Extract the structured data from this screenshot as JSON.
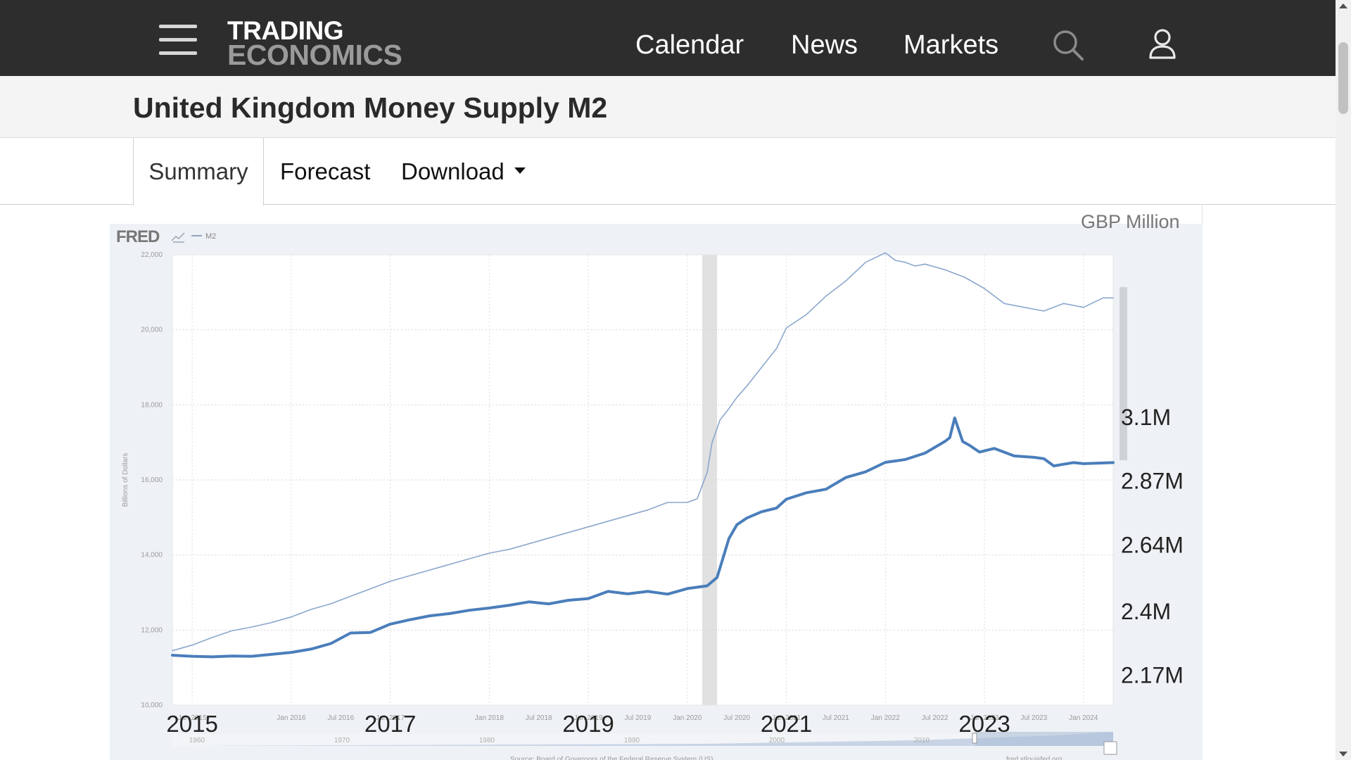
{
  "header": {
    "logo_top": "TRADING",
    "logo_bottom": "ECONOMICS",
    "nav": [
      "Calendar",
      "News",
      "Markets"
    ],
    "icons": [
      "menu-icon",
      "search-icon",
      "user-icon"
    ]
  },
  "page": {
    "title": "United Kingdom Money Supply M2"
  },
  "tabs": {
    "summary": "Summary",
    "forecast": "Forecast",
    "download": "Download"
  },
  "chart_data": {
    "type": "line",
    "unit_label": "GBP Million",
    "fred_brand": "FRED",
    "legend_series": "M2",
    "ylabel": "Billions of Dollars",
    "left_axis_ticks": [
      "10,000",
      "12,000",
      "14,000",
      "16,000",
      "18,000",
      "20,000",
      "22,000"
    ],
    "left_ylim": [
      10000,
      22000
    ],
    "right_axis_ticks": [
      "2.17M",
      "2.4M",
      "2.64M",
      "2.87M",
      "3.1M"
    ],
    "x_year_labels": [
      "2015",
      "2017",
      "2019",
      "2021",
      "2023"
    ],
    "x_small_ticks": [
      "Jan 2015",
      "Jan 2016",
      "Jul 2016",
      "Jan 2017",
      "Jan 2018",
      "Jul 2018",
      "Jan 2019",
      "Jul 2019",
      "Jan 2020",
      "Jul 2020",
      "Jan 2021",
      "Jul 2021",
      "Jan 2022",
      "Jul 2022",
      "Jan 2023",
      "Jul 2023",
      "Jan 2024"
    ],
    "navigator_labels": [
      "1960",
      "1970",
      "1980",
      "1990",
      "2000",
      "2010"
    ],
    "source_text": "Source: Board of Governors of the Federal Reserve System (US)",
    "site_text": "fred.stlouisfed.org",
    "recession_shading": [
      2020.15,
      2020.3
    ],
    "grid": true,
    "series": [
      {
        "name": "M2",
        "role": "fred-thin",
        "x": [
          2014.8,
          2015.0,
          2015.2,
          2015.4,
          2015.6,
          2015.8,
          2016.0,
          2016.2,
          2016.4,
          2016.6,
          2016.8,
          2017.0,
          2017.2,
          2017.4,
          2017.6,
          2017.8,
          2018.0,
          2018.2,
          2018.4,
          2018.6,
          2018.8,
          2019.0,
          2019.2,
          2019.4,
          2019.6,
          2019.8,
          2020.0,
          2020.1,
          2020.2,
          2020.25,
          2020.33,
          2020.42,
          2020.5,
          2020.6,
          2020.75,
          2020.9,
          2021.0,
          2021.2,
          2021.4,
          2021.6,
          2021.8,
          2022.0,
          2022.1,
          2022.2,
          2022.3,
          2022.4,
          2022.6,
          2022.8,
          2023.0,
          2023.2,
          2023.4,
          2023.6,
          2023.8,
          2024.0,
          2024.2,
          2024.3
        ],
        "y": [
          11450,
          11600,
          11800,
          11980,
          12080,
          12200,
          12350,
          12550,
          12700,
          12900,
          13100,
          13300,
          13450,
          13600,
          13750,
          13900,
          14050,
          14150,
          14300,
          14450,
          14600,
          14750,
          14900,
          15050,
          15200,
          15400,
          15400,
          15500,
          16200,
          17000,
          17600,
          17900,
          18200,
          18500,
          19000,
          19500,
          20050,
          20400,
          20900,
          21300,
          21800,
          22050,
          21850,
          21800,
          21700,
          21750,
          21600,
          21400,
          21100,
          20700,
          20600,
          20500,
          20700,
          20600,
          20850,
          20850
        ]
      },
      {
        "name": "United Kingdom Money Supply M2",
        "role": "te-thick",
        "x": [
          2014.8,
          2015.0,
          2015.2,
          2015.4,
          2015.6,
          2015.8,
          2016.0,
          2016.2,
          2016.4,
          2016.6,
          2016.8,
          2017.0,
          2017.2,
          2017.4,
          2017.6,
          2017.8,
          2018.0,
          2018.2,
          2018.4,
          2018.6,
          2018.8,
          2019.0,
          2019.2,
          2019.4,
          2019.6,
          2019.8,
          2020.0,
          2020.2,
          2020.3,
          2020.42,
          2020.5,
          2020.6,
          2020.75,
          2020.9,
          2021.0,
          2021.2,
          2021.4,
          2021.6,
          2021.8,
          2022.0,
          2022.2,
          2022.4,
          2022.6,
          2022.65,
          2022.7,
          2022.78,
          2022.85,
          2022.95,
          2023.1,
          2023.3,
          2023.5,
          2023.6,
          2023.7,
          2023.8,
          2023.9,
          2024.0,
          2024.3
        ],
        "y": [
          2240,
          2236,
          2234,
          2237,
          2236,
          2243,
          2250,
          2262,
          2282,
          2320,
          2322,
          2352,
          2368,
          2382,
          2390,
          2402,
          2410,
          2420,
          2432,
          2425,
          2438,
          2444,
          2470,
          2461,
          2470,
          2460,
          2480,
          2490,
          2520,
          2660,
          2710,
          2734,
          2757,
          2770,
          2802,
          2825,
          2838,
          2880,
          2901,
          2935,
          2945,
          2968,
          3010,
          3024,
          3095,
          3010,
          2996,
          2972,
          2985,
          2958,
          2953,
          2948,
          2922,
          2928,
          2934,
          2930,
          2934
        ]
      }
    ]
  }
}
